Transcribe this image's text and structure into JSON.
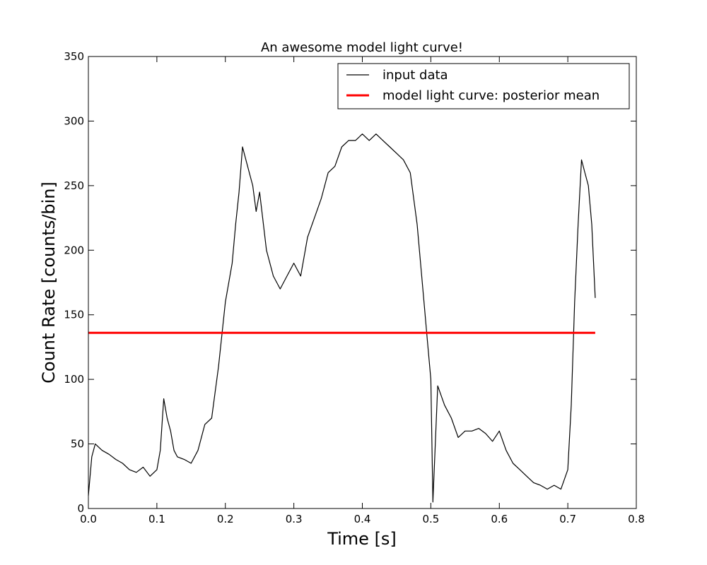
{
  "chart_data": {
    "type": "line",
    "title": "An awesome model light curve!",
    "xlabel": "Time [s]",
    "ylabel": "Count Rate [counts/bin]",
    "xlim": [
      0.0,
      0.8
    ],
    "ylim": [
      0,
      350
    ],
    "xticks": [
      "0.0",
      "0.1",
      "0.2",
      "0.3",
      "0.4",
      "0.5",
      "0.6",
      "0.7",
      "0.8"
    ],
    "yticks": [
      "0",
      "50",
      "100",
      "150",
      "200",
      "250",
      "300",
      "350"
    ],
    "grid": false,
    "legend_position": "top-right",
    "series": [
      {
        "name": "input data",
        "color": "#000000",
        "x": [
          0.0,
          0.005,
          0.01,
          0.02,
          0.03,
          0.04,
          0.05,
          0.06,
          0.07,
          0.08,
          0.09,
          0.1,
          0.105,
          0.11,
          0.115,
          0.12,
          0.125,
          0.13,
          0.14,
          0.15,
          0.16,
          0.17,
          0.18,
          0.19,
          0.2,
          0.21,
          0.215,
          0.22,
          0.225,
          0.23,
          0.24,
          0.245,
          0.25,
          0.26,
          0.27,
          0.28,
          0.29,
          0.3,
          0.31,
          0.32,
          0.33,
          0.34,
          0.35,
          0.36,
          0.37,
          0.38,
          0.39,
          0.4,
          0.41,
          0.42,
          0.43,
          0.44,
          0.45,
          0.46,
          0.47,
          0.48,
          0.49,
          0.495,
          0.5,
          0.503,
          0.51,
          0.52,
          0.53,
          0.54,
          0.55,
          0.56,
          0.57,
          0.58,
          0.59,
          0.6,
          0.61,
          0.62,
          0.63,
          0.64,
          0.65,
          0.66,
          0.67,
          0.68,
          0.69,
          0.7,
          0.705,
          0.71,
          0.715,
          0.72,
          0.725,
          0.73,
          0.735,
          0.74
        ],
        "y": [
          10,
          40,
          50,
          45,
          42,
          38,
          35,
          30,
          28,
          32,
          25,
          30,
          45,
          85,
          70,
          60,
          45,
          40,
          38,
          35,
          45,
          65,
          70,
          110,
          160,
          190,
          220,
          245,
          280,
          270,
          250,
          230,
          245,
          200,
          180,
          170,
          180,
          190,
          180,
          210,
          225,
          240,
          260,
          265,
          280,
          285,
          285,
          290,
          285,
          290,
          285,
          280,
          275,
          270,
          260,
          220,
          160,
          130,
          100,
          5,
          95,
          80,
          70,
          55,
          60,
          60,
          62,
          58,
          52,
          60,
          45,
          35,
          30,
          25,
          20,
          18,
          15,
          18,
          15,
          30,
          80,
          160,
          220,
          270,
          260,
          250,
          220,
          163
        ]
      },
      {
        "name": "model light curve: posterior mean",
        "color": "#ff0000",
        "x": [
          0.0,
          0.74
        ],
        "y": [
          136,
          136
        ]
      }
    ]
  }
}
